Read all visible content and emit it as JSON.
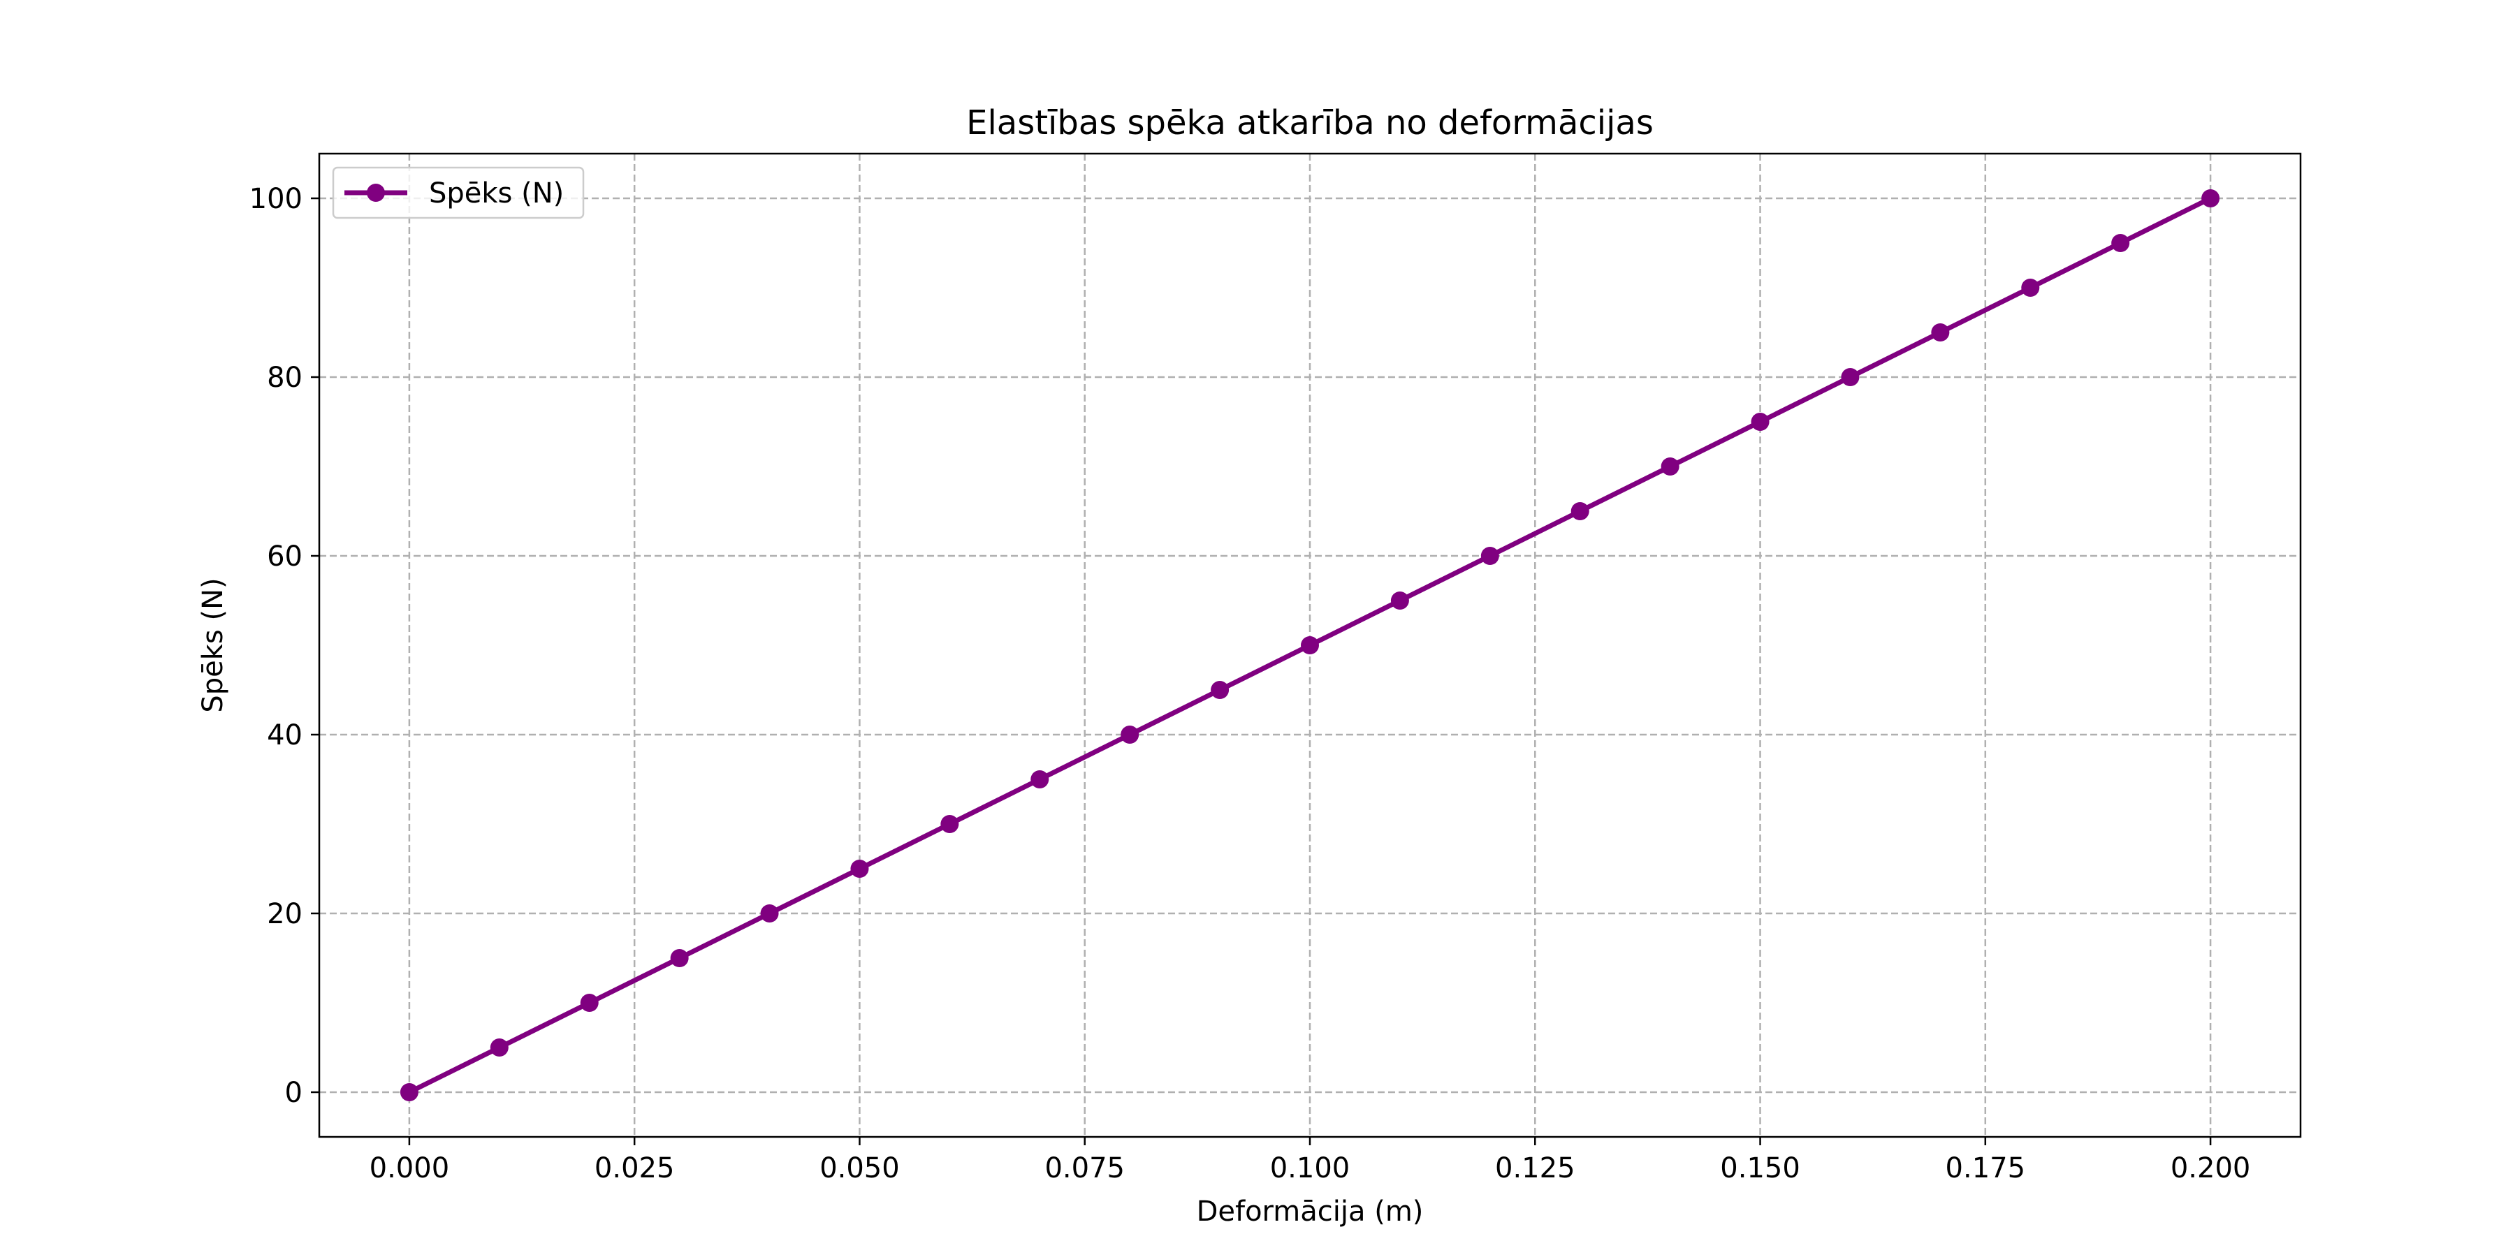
{
  "chart_data": {
    "type": "line",
    "title": "Elastības spēka atkarība no deformācijas",
    "xlabel": "Deformācija (m)",
    "ylabel": "Spēks (N)",
    "xlim": [
      -0.01,
      0.21
    ],
    "ylim": [
      -5,
      105
    ],
    "xticks": [
      "0.000",
      "0.025",
      "0.050",
      "0.075",
      "0.100",
      "0.125",
      "0.150",
      "0.175",
      "0.200"
    ],
    "yticks": [
      "0",
      "20",
      "40",
      "60",
      "80",
      "100"
    ],
    "grid": true,
    "legend_position": "top-left",
    "series": [
      {
        "name": "Spēks (N)",
        "color": "#800080",
        "marker": "circle",
        "x": [
          0.0,
          0.01,
          0.02,
          0.03,
          0.04,
          0.05,
          0.06,
          0.07,
          0.08,
          0.09,
          0.1,
          0.11,
          0.12,
          0.13,
          0.14,
          0.15,
          0.16,
          0.17,
          0.18,
          0.19,
          0.2
        ],
        "y": [
          0,
          5,
          10,
          15,
          20,
          25,
          30,
          35,
          40,
          45,
          50,
          55,
          60,
          65,
          70,
          75,
          80,
          85,
          90,
          95,
          100
        ]
      }
    ]
  }
}
